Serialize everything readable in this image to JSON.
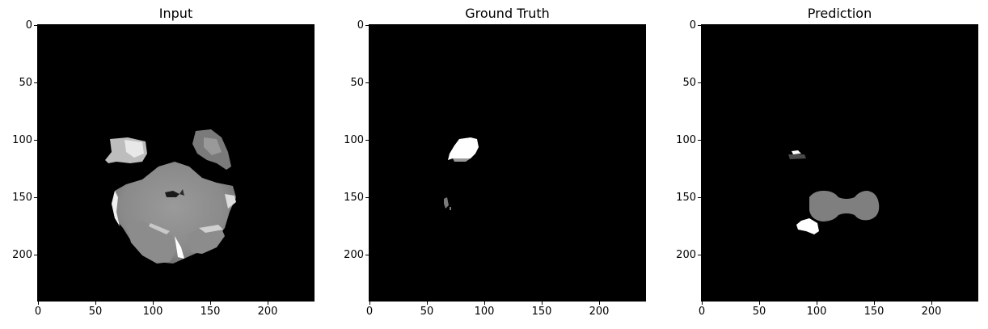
{
  "panels": [
    {
      "title": "Input",
      "yticks": [
        "0",
        "50",
        "100",
        "150",
        "200"
      ],
      "xticks": [
        "0",
        "50",
        "100",
        "150",
        "200"
      ]
    },
    {
      "title": "Ground Truth",
      "yticks": [
        "0",
        "50",
        "100",
        "150",
        "200"
      ],
      "xticks": [
        "0",
        "50",
        "100",
        "150",
        "200"
      ]
    },
    {
      "title": "Prediction",
      "yticks": [
        "0",
        "50",
        "100",
        "150",
        "200"
      ],
      "xticks": [
        "0",
        "50",
        "100",
        "150",
        "200"
      ]
    }
  ]
}
